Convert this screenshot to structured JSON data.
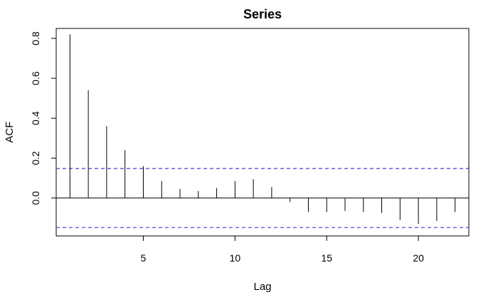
{
  "chart_data": {
    "type": "bar",
    "title": "Series",
    "xlabel": "Lag",
    "ylabel": "ACF",
    "xlim": [
      0.25,
      22.75
    ],
    "ylim": [
      -0.19,
      0.85
    ],
    "x_ticks": [
      5,
      10,
      15,
      20
    ],
    "x_tick_labels": [
      "5",
      "10",
      "15",
      "20"
    ],
    "y_ticks": [
      0.0,
      0.2,
      0.4,
      0.6,
      0.8
    ],
    "y_tick_labels": [
      "0.0",
      "0.2",
      "0.4",
      "0.6",
      "0.8"
    ],
    "x": [
      1,
      2,
      3,
      4,
      5,
      6,
      7,
      8,
      9,
      10,
      11,
      12,
      13,
      14,
      15,
      16,
      17,
      18,
      19,
      20,
      21,
      22
    ],
    "values": [
      0.82,
      0.54,
      0.36,
      0.24,
      0.16,
      0.085,
      0.045,
      0.035,
      0.05,
      0.085,
      0.095,
      0.055,
      -0.02,
      -0.07,
      -0.07,
      -0.065,
      -0.07,
      -0.075,
      -0.11,
      -0.13,
      -0.115,
      -0.07
    ],
    "confidence_band": [
      -0.148,
      0.148
    ],
    "zero_line": 0,
    "grid": false,
    "legend": "none",
    "colors": {
      "bars": "#000000",
      "confidence_band": "#3b3bdf",
      "axes": "#000000"
    }
  }
}
